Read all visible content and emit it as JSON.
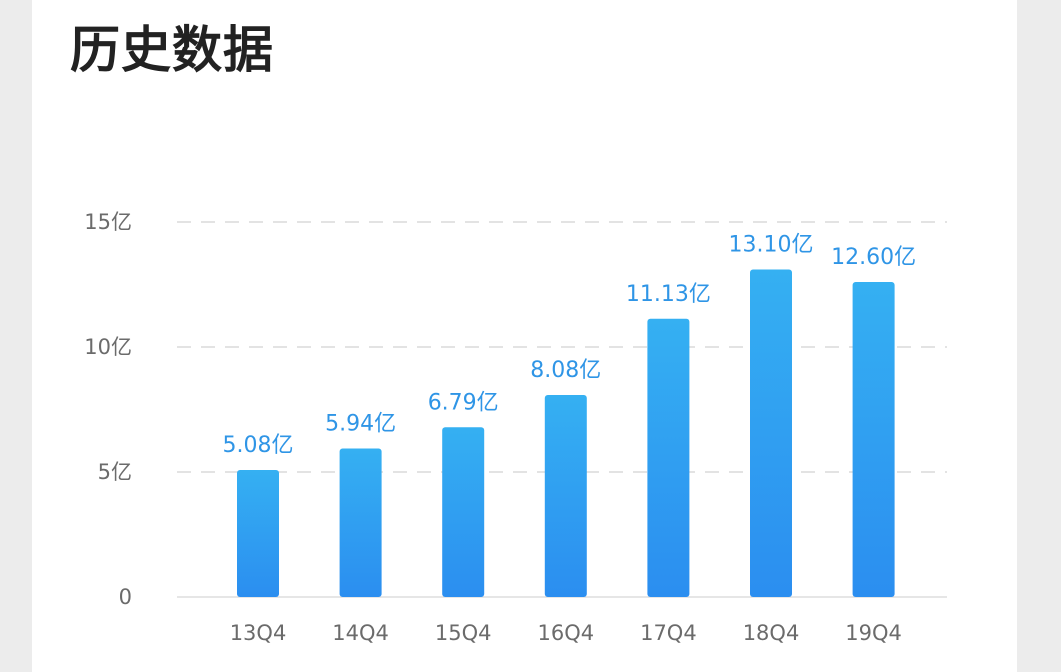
{
  "title": "历史数据",
  "chart_data": {
    "type": "bar",
    "categories": [
      "13Q4",
      "14Q4",
      "15Q4",
      "16Q4",
      "17Q4",
      "18Q4",
      "19Q4"
    ],
    "values": [
      5.08,
      5.94,
      6.79,
      8.08,
      11.13,
      13.1,
      12.6
    ],
    "data_labels": [
      "5.08亿",
      "5.94亿",
      "6.79亿",
      "8.08亿",
      "11.13亿",
      "13.10亿",
      "12.60亿"
    ],
    "ylim": [
      0,
      15
    ],
    "y_ticks": [
      0,
      5,
      10,
      15
    ],
    "y_tick_labels": [
      "0",
      "5亿",
      "10亿",
      "15亿"
    ],
    "grid": true,
    "colors": {
      "bar_top": "#35b0f2",
      "bar_bottom": "#2b8ef0",
      "label": "#2f95e6"
    }
  }
}
